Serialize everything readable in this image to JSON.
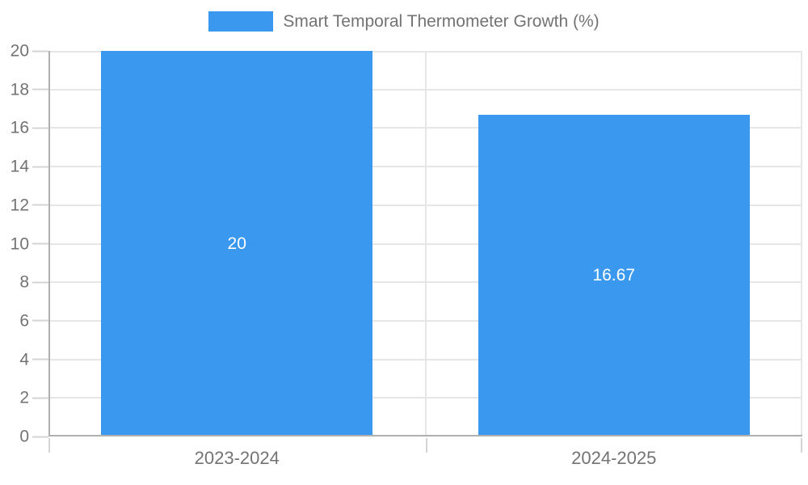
{
  "chart_data": {
    "type": "bar",
    "title": "Smart Temporal Thermometer Growth (%)",
    "categories": [
      "2023-2024",
      "2024-2025"
    ],
    "values": [
      20,
      16.67
    ],
    "value_labels": [
      "20",
      "16.67"
    ],
    "xlabel": "",
    "ylabel": "",
    "ylim": [
      0,
      20
    ],
    "ytick_step": 2,
    "ytick_labels": [
      "0",
      "2",
      "4",
      "6",
      "8",
      "10",
      "12",
      "14",
      "16",
      "18",
      "20"
    ],
    "grid": true,
    "legend_position": "top",
    "bar_width_fraction": 0.72
  },
  "colors": {
    "bar": "#3a99ee",
    "grid": "#e6e6e6",
    "axis": "#b0b0b0",
    "tick": "#d4d4d4",
    "text": "#737373",
    "bar_label": "#ffffff",
    "background": "#ffffff"
  }
}
